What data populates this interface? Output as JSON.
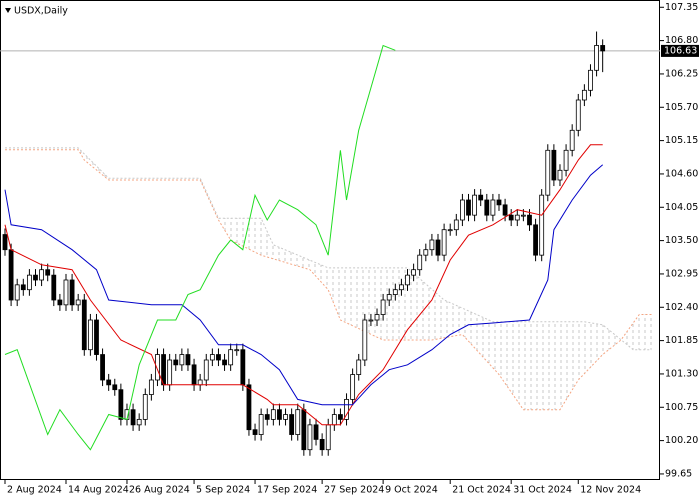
{
  "chart_data": {
    "type": "candlestick",
    "title": "USDX,Daily",
    "xlim": [
      -0.82,
      107.4
    ],
    "ylim": [
      99.55,
      107.47
    ],
    "yticks": [
      {
        "value": 107.35,
        "label": "107.35"
      },
      {
        "value": 106.8,
        "label": "106.80"
      },
      {
        "value": 106.25,
        "label": "106.25"
      },
      {
        "value": 105.7,
        "label": "105.70"
      },
      {
        "value": 105.15,
        "label": "105.15"
      },
      {
        "value": 104.6,
        "label": "104.60"
      },
      {
        "value": 104.05,
        "label": "104.05"
      },
      {
        "value": 103.5,
        "label": "103.50"
      },
      {
        "value": 102.95,
        "label": "102.95"
      },
      {
        "value": 102.4,
        "label": "102.40"
      },
      {
        "value": 101.85,
        "label": "101.85"
      },
      {
        "value": 101.3,
        "label": "101.30"
      },
      {
        "value": 100.75,
        "label": "100.75"
      },
      {
        "value": 100.2,
        "label": "100.20"
      },
      {
        "value": 99.65,
        "label": "99.65"
      }
    ],
    "xticks": [
      {
        "value": 0,
        "label": "2 Aug 2024"
      },
      {
        "value": 10,
        "label": "14 Aug 2024"
      },
      {
        "value": 20,
        "label": "26 Aug 2024"
      },
      {
        "value": 31,
        "label": "5 Sep 2024"
      },
      {
        "value": 41,
        "label": "17 Sep 2024"
      },
      {
        "value": 52,
        "label": "27 Sep 2024"
      },
      {
        "value": 62,
        "label": "9 Oct 2024"
      },
      {
        "value": 73,
        "label": "21 Oct 2024"
      },
      {
        "value": 83,
        "label": "31 Oct 2024"
      },
      {
        "value": 94,
        "label": "12 Nov 2024"
      }
    ],
    "candles": {
      "open": [
        103.6,
        103.35,
        102.52,
        102.77,
        102.69,
        102.93,
        102.85,
        103.02,
        102.93,
        102.52,
        102.44,
        102.85,
        102.44,
        102.52,
        101.7,
        102.19,
        101.62,
        101.2,
        101.12,
        101.04,
        100.55,
        100.71,
        100.46,
        100.55,
        100.96,
        101.2,
        101.62,
        101.12,
        101.53,
        101.45,
        101.62,
        101.45,
        101.12,
        101.2,
        101.53,
        101.62,
        101.53,
        101.45,
        101.7,
        101.7,
        101.12,
        100.38,
        100.3,
        100.63,
        100.55,
        100.71,
        100.55,
        100.63,
        100.3,
        100.71,
        100.05,
        100.46,
        100.22,
        100.05,
        100.46,
        100.63,
        100.55,
        100.88,
        101.29,
        101.53,
        102.19,
        102.19,
        102.28,
        102.52,
        102.61,
        102.69,
        102.77,
        102.93,
        103.02,
        103.26,
        103.35,
        103.51,
        103.26,
        103.68,
        103.68,
        103.84,
        104.17,
        103.92,
        104.25,
        104.17,
        103.92,
        104.17,
        104.09,
        103.92,
        103.84,
        103.92,
        103.92,
        103.76,
        103.26,
        104.25,
        104.99,
        104.5,
        104.66,
        104.99,
        105.32,
        105.82,
        105.98,
        106.31,
        106.72
      ],
      "high": [
        103.7,
        103.45,
        102.87,
        102.87,
        103.03,
        103.03,
        103.12,
        103.12,
        103.03,
        102.62,
        102.95,
        102.95,
        102.62,
        102.62,
        102.29,
        102.29,
        101.72,
        101.3,
        101.22,
        101.14,
        100.81,
        100.81,
        100.65,
        101.06,
        101.3,
        101.72,
        101.72,
        101.63,
        101.63,
        101.72,
        101.72,
        101.55,
        101.3,
        101.63,
        101.72,
        101.72,
        101.63,
        101.8,
        101.8,
        101.8,
        101.22,
        100.48,
        100.73,
        100.73,
        100.81,
        100.81,
        100.73,
        100.73,
        100.81,
        100.81,
        100.56,
        100.56,
        100.32,
        100.56,
        100.73,
        100.73,
        100.98,
        101.39,
        101.63,
        102.29,
        102.29,
        102.38,
        102.62,
        102.71,
        102.79,
        102.87,
        103.03,
        103.12,
        103.36,
        103.45,
        103.61,
        103.61,
        103.78,
        103.78,
        103.94,
        104.27,
        104.27,
        104.35,
        104.35,
        104.27,
        104.27,
        104.27,
        104.19,
        104.02,
        104.02,
        104.02,
        104.02,
        103.86,
        104.35,
        105.09,
        105.09,
        104.76,
        105.09,
        105.42,
        105.92,
        106.08,
        106.41,
        106.95,
        106.82
      ],
      "low": [
        103.25,
        102.42,
        102.42,
        102.59,
        102.59,
        102.75,
        102.75,
        102.83,
        102.42,
        102.34,
        102.34,
        102.34,
        102.34,
        101.6,
        101.6,
        101.52,
        101.1,
        101.02,
        100.94,
        100.45,
        100.45,
        100.36,
        100.36,
        100.45,
        100.86,
        101.1,
        101.02,
        101.02,
        101.35,
        101.35,
        101.35,
        101.02,
        101.02,
        101.1,
        101.43,
        101.43,
        101.35,
        101.35,
        101.6,
        101.02,
        100.28,
        100.2,
        100.2,
        100.45,
        100.45,
        100.45,
        100.45,
        100.2,
        100.2,
        99.95,
        99.95,
        100.12,
        99.95,
        99.95,
        100.36,
        100.45,
        100.45,
        100.78,
        101.19,
        101.43,
        102.09,
        102.09,
        102.18,
        102.42,
        102.51,
        102.59,
        102.67,
        102.83,
        102.92,
        103.16,
        103.25,
        103.16,
        103.16,
        103.58,
        103.58,
        103.74,
        103.82,
        103.82,
        104.07,
        103.82,
        103.82,
        103.99,
        103.82,
        103.74,
        103.74,
        103.82,
        103.66,
        103.16,
        103.16,
        104.15,
        104.4,
        104.4,
        104.56,
        104.89,
        105.22,
        105.72,
        105.88,
        106.21,
        106.28
      ],
      "close": [
        103.35,
        102.52,
        102.77,
        102.69,
        102.93,
        102.85,
        103.02,
        102.93,
        102.52,
        102.44,
        102.85,
        102.44,
        102.52,
        101.7,
        102.19,
        101.62,
        101.2,
        101.12,
        101.04,
        100.55,
        100.71,
        100.46,
        100.55,
        100.96,
        101.2,
        101.62,
        101.12,
        101.53,
        101.45,
        101.62,
        101.45,
        101.12,
        101.2,
        101.53,
        101.62,
        101.53,
        101.45,
        101.7,
        101.7,
        101.12,
        100.38,
        100.3,
        100.63,
        100.55,
        100.71,
        100.55,
        100.63,
        100.3,
        100.71,
        100.05,
        100.46,
        100.22,
        100.05,
        100.46,
        100.63,
        100.55,
        100.88,
        101.29,
        101.53,
        102.19,
        102.19,
        102.28,
        102.52,
        102.61,
        102.69,
        102.77,
        102.93,
        103.02,
        103.26,
        103.35,
        103.51,
        103.26,
        103.68,
        103.68,
        103.84,
        104.17,
        103.92,
        104.25,
        104.17,
        103.92,
        104.17,
        104.09,
        103.92,
        103.84,
        103.92,
        103.92,
        103.76,
        103.26,
        104.25,
        104.99,
        104.5,
        104.66,
        104.99,
        105.32,
        105.82,
        105.98,
        106.31,
        106.72,
        106.63
      ]
    },
    "cloud": {
      "color": "#c8c8c8",
      "span_a": {
        "color": "#f4a582",
        "x": [
          0,
          12,
          13,
          17,
          32,
          35,
          37,
          42,
          50,
          53,
          55,
          62,
          70,
          75,
          81,
          85,
          91,
          94,
          98,
          101,
          104,
          106
        ],
        "values": [
          105.0,
          105.0,
          104.83,
          104.5,
          104.5,
          103.84,
          103.51,
          103.26,
          103.02,
          102.69,
          102.19,
          101.86,
          101.86,
          101.95,
          101.29,
          100.71,
          100.71,
          101.2,
          101.62,
          101.86,
          102.28,
          102.28
        ]
      },
      "span_b": {
        "color": "#c8c8c8",
        "x": [
          0,
          12,
          17,
          32,
          35,
          42,
          44,
          53,
          66,
          72,
          80,
          95,
          98,
          103,
          106
        ],
        "values": [
          105.03,
          105.03,
          104.53,
          104.53,
          103.87,
          103.87,
          103.43,
          103.05,
          103.05,
          102.52,
          102.16,
          102.16,
          102.11,
          101.7,
          101.7
        ]
      }
    },
    "lines": [
      {
        "color": "#e00000",
        "x": [
          0,
          1,
          6,
          11,
          14,
          19,
          24,
          26,
          32,
          39,
          43,
          44,
          48,
          52,
          55,
          58,
          62,
          66,
          70,
          73,
          76,
          80,
          84,
          88,
          91,
          94,
          96,
          98
        ],
        "values": [
          103.76,
          103.35,
          103.1,
          103.02,
          102.52,
          101.86,
          101.62,
          101.12,
          101.12,
          101.12,
          100.88,
          100.79,
          100.79,
          100.46,
          100.46,
          100.96,
          101.37,
          102.03,
          102.52,
          103.18,
          103.59,
          103.76,
          104.01,
          103.92,
          104.34,
          104.83,
          105.08,
          105.08
        ]
      },
      {
        "color": "#0000c8",
        "x": [
          0,
          1,
          6,
          11,
          15,
          17,
          24,
          29,
          32,
          35,
          39,
          42,
          45,
          48,
          52,
          57,
          60,
          63,
          66,
          70,
          73,
          76,
          80,
          86,
          89,
          90,
          93,
          96,
          98
        ],
        "values": [
          104.34,
          103.76,
          103.68,
          103.35,
          103.02,
          102.52,
          102.44,
          102.44,
          102.19,
          101.78,
          101.78,
          101.62,
          101.37,
          100.88,
          100.79,
          100.79,
          101.12,
          101.37,
          101.45,
          101.7,
          101.95,
          102.11,
          102.14,
          102.19,
          102.85,
          103.68,
          104.17,
          104.58,
          104.75
        ]
      },
      {
        "color": "#22dd22",
        "x": [
          0,
          2,
          7,
          9,
          12,
          14,
          17,
          20,
          22,
          25,
          28,
          30,
          32,
          35,
          37,
          39,
          41,
          43,
          45,
          48,
          51,
          53,
          55,
          56,
          58,
          62,
          64
        ],
        "values": [
          101.62,
          101.7,
          100.3,
          100.71,
          100.3,
          100.05,
          100.63,
          100.55,
          101.45,
          102.19,
          102.19,
          102.61,
          102.69,
          103.26,
          103.51,
          103.35,
          104.25,
          103.84,
          104.17,
          104.01,
          103.76,
          103.26,
          104.99,
          104.17,
          105.32,
          106.72,
          106.64
        ]
      }
    ]
  }
}
